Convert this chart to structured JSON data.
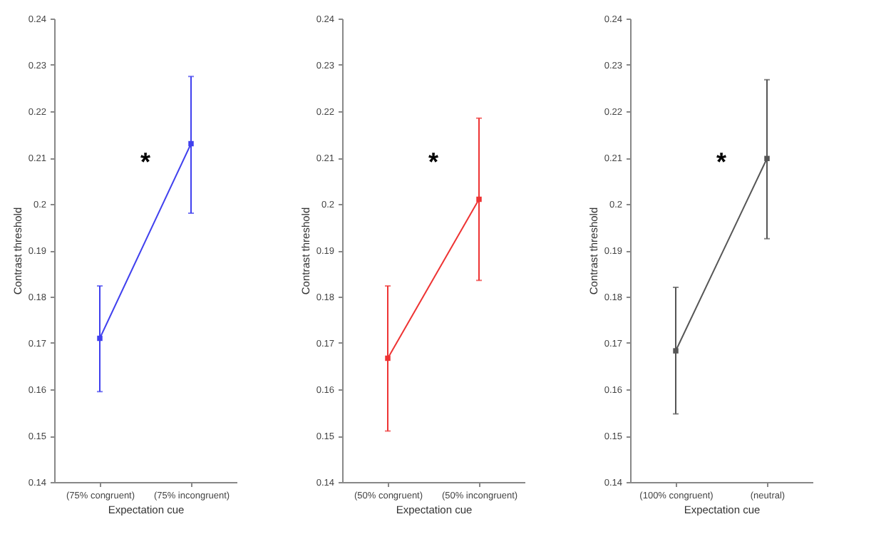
{
  "chart_data": [
    {
      "type": "line",
      "xlabel": "Expectation cue",
      "ylabel": "Contrast threshold",
      "categories": [
        "(75% congruent)",
        "(75% incongruent)"
      ],
      "series": [
        {
          "color": "#4040ee",
          "values": [
            0.171,
            0.213
          ],
          "errors": [
            [
              0.1595,
              0.1823
            ],
            [
              0.198,
              0.2275
            ]
          ]
        }
      ],
      "ylim": [
        0.14,
        0.24
      ],
      "yticks": [
        0.14,
        0.15,
        0.16,
        0.17,
        0.18,
        0.19,
        0.2,
        0.21,
        0.22,
        0.23,
        0.24
      ],
      "marker": "square",
      "line_style": "solid",
      "annotations": [
        "*"
      ]
    },
    {
      "type": "line",
      "xlabel": "Expectation cue",
      "ylabel": "Contrast threshold",
      "categories": [
        "(50% congruent)",
        "(50% incongruent)"
      ],
      "series": [
        {
          "color": "#ee3333",
          "values": [
            0.1667,
            0.201
          ],
          "errors": [
            [
              0.151,
              0.1823
            ],
            [
              0.1835,
              0.2185
            ]
          ]
        }
      ],
      "ylim": [
        0.14,
        0.24
      ],
      "yticks": [
        0.14,
        0.15,
        0.16,
        0.17,
        0.18,
        0.19,
        0.2,
        0.21,
        0.22,
        0.23,
        0.24
      ],
      "marker": "square",
      "line_style": "solid",
      "annotations": [
        "*"
      ]
    },
    {
      "type": "line",
      "xlabel": "Expectation cue",
      "ylabel": "Contrast threshold",
      "categories": [
        "(100% congruent)",
        "(neutral)"
      ],
      "series": [
        {
          "color": "#555555",
          "values": [
            0.1683,
            0.2098
          ],
          "errors": [
            [
              0.1547,
              0.182
            ],
            [
              0.1925,
              0.2268
            ]
          ]
        }
      ],
      "ylim": [
        0.14,
        0.24
      ],
      "yticks": [
        0.14,
        0.15,
        0.16,
        0.17,
        0.18,
        0.19,
        0.2,
        0.21,
        0.22,
        0.23,
        0.24
      ],
      "marker": "square",
      "line_style": "solid",
      "annotations": [
        "*"
      ]
    }
  ]
}
